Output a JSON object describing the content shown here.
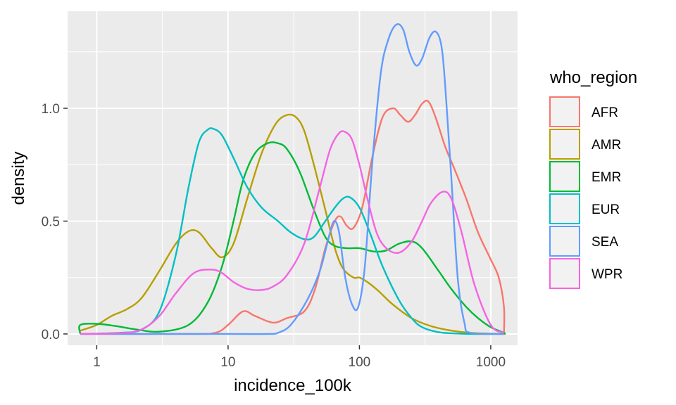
{
  "chart_data": {
    "type": "line",
    "chart_kind": "density",
    "xlabel": "incidence_100k",
    "ylabel": "density",
    "x_scale": "log10",
    "xlim": [
      0.6,
      1600
    ],
    "ylim": [
      -0.05,
      1.43
    ],
    "x_ticks": [
      1,
      10,
      100,
      1000
    ],
    "x_tick_labels": [
      "1",
      "10",
      "100",
      "1000"
    ],
    "y_ticks": [
      0,
      0.5,
      1
    ],
    "y_tick_labels": [
      "0.0",
      "0.5",
      "1.0"
    ],
    "grid": true,
    "panel_background": "#ebebeb",
    "grid_color": "#ffffff",
    "legend": {
      "title": "who_region",
      "position": "right"
    },
    "series": [
      {
        "name": "AFR",
        "color": "#F8766D",
        "x": [
          0.75,
          5,
          8,
          10,
          13,
          16,
          22,
          28,
          38,
          46,
          55,
          65,
          72,
          80,
          90,
          105,
          125,
          150,
          180,
          205,
          235,
          265,
          300,
          335,
          380,
          450,
          530,
          650,
          800,
          1000,
          1150,
          1260,
          1260
        ],
        "y": [
          0,
          0,
          0.005,
          0.04,
          0.1,
          0.08,
          0.05,
          0.07,
          0.1,
          0.2,
          0.38,
          0.5,
          0.52,
          0.48,
          0.47,
          0.56,
          0.78,
          0.96,
          1.0,
          0.97,
          0.94,
          0.97,
          1.02,
          1.03,
          0.96,
          0.83,
          0.73,
          0.6,
          0.45,
          0.33,
          0.25,
          0.12,
          0
        ]
      },
      {
        "name": "AMR",
        "color": "#B79F00",
        "x": [
          0.75,
          1,
          1.3,
          1.7,
          2.2,
          3,
          4,
          5,
          6,
          7.5,
          9,
          11,
          14,
          18,
          23,
          28,
          33,
          38,
          45,
          55,
          65,
          75,
          90,
          100,
          115,
          140,
          180,
          250,
          350,
          500,
          700,
          1000,
          1260,
          1260
        ],
        "y": [
          0.015,
          0.04,
          0.08,
          0.11,
          0.16,
          0.28,
          0.4,
          0.455,
          0.45,
          0.38,
          0.34,
          0.4,
          0.6,
          0.8,
          0.93,
          0.97,
          0.96,
          0.9,
          0.75,
          0.55,
          0.38,
          0.29,
          0.25,
          0.25,
          0.23,
          0.19,
          0.13,
          0.07,
          0.035,
          0.015,
          0.005,
          0.001,
          0,
          0
        ]
      },
      {
        "name": "EMR",
        "color": "#00BA38",
        "x": [
          0.75,
          0.75,
          1,
          1.4,
          2,
          3,
          5,
          7,
          9,
          11,
          13,
          16,
          20,
          24,
          28,
          35,
          45,
          55,
          65,
          80,
          100,
          130,
          160,
          200,
          250,
          300,
          400,
          500,
          650,
          800,
          1000,
          1260,
          1260
        ],
        "y": [
          0,
          0.04,
          0.045,
          0.035,
          0.02,
          0.01,
          0.04,
          0.14,
          0.3,
          0.5,
          0.68,
          0.8,
          0.845,
          0.845,
          0.82,
          0.72,
          0.55,
          0.43,
          0.39,
          0.38,
          0.38,
          0.365,
          0.37,
          0.4,
          0.41,
          0.38,
          0.28,
          0.2,
          0.12,
          0.07,
          0.03,
          0.005,
          0
        ]
      },
      {
        "name": "EUR",
        "color": "#00BFC4",
        "x": [
          0.75,
          1.5,
          2.2,
          3,
          4,
          5,
          6,
          7,
          7.8,
          9,
          11,
          14,
          18,
          24,
          30,
          38,
          45,
          55,
          65,
          75,
          85,
          100,
          120,
          150,
          200,
          250,
          300,
          400,
          550,
          700,
          1000,
          1260
        ],
        "y": [
          0,
          0.005,
          0.02,
          0.1,
          0.35,
          0.65,
          0.85,
          0.905,
          0.908,
          0.88,
          0.78,
          0.65,
          0.56,
          0.5,
          0.45,
          0.42,
          0.43,
          0.5,
          0.56,
          0.6,
          0.605,
          0.56,
          0.45,
          0.3,
          0.15,
          0.07,
          0.03,
          0.008,
          0.002,
          0,
          0,
          0
        ]
      },
      {
        "name": "SEA",
        "color": "#619CFF",
        "x": [
          0.75,
          10,
          20,
          24,
          30,
          40,
          50,
          58,
          64,
          70,
          78,
          88,
          98,
          110,
          125,
          145,
          165,
          190,
          215,
          240,
          270,
          300,
          340,
          380,
          420,
          450,
          500,
          560,
          630,
          700,
          1260
        ],
        "y": [
          0,
          0,
          0,
          0.005,
          0.04,
          0.15,
          0.28,
          0.42,
          0.5,
          0.45,
          0.25,
          0.13,
          0.12,
          0.3,
          0.75,
          1.15,
          1.3,
          1.37,
          1.35,
          1.25,
          1.19,
          1.22,
          1.31,
          1.34,
          1.28,
          1.1,
          0.7,
          0.25,
          0.05,
          0.005,
          0
        ]
      },
      {
        "name": "WPR",
        "color": "#F564E3",
        "x": [
          0.75,
          1.5,
          2.2,
          3,
          4,
          5.5,
          7.5,
          9,
          11,
          14,
          18,
          22,
          28,
          38,
          50,
          60,
          70,
          78,
          88,
          100,
          115,
          135,
          160,
          200,
          250,
          300,
          350,
          430,
          500,
          600,
          750,
          1000,
          1260
        ],
        "y": [
          0,
          0.003,
          0.02,
          0.08,
          0.18,
          0.27,
          0.285,
          0.27,
          0.23,
          0.2,
          0.195,
          0.21,
          0.26,
          0.4,
          0.65,
          0.82,
          0.89,
          0.895,
          0.86,
          0.75,
          0.6,
          0.45,
          0.38,
          0.36,
          0.41,
          0.5,
          0.58,
          0.63,
          0.6,
          0.45,
          0.22,
          0.04,
          0.005
        ]
      }
    ]
  }
}
